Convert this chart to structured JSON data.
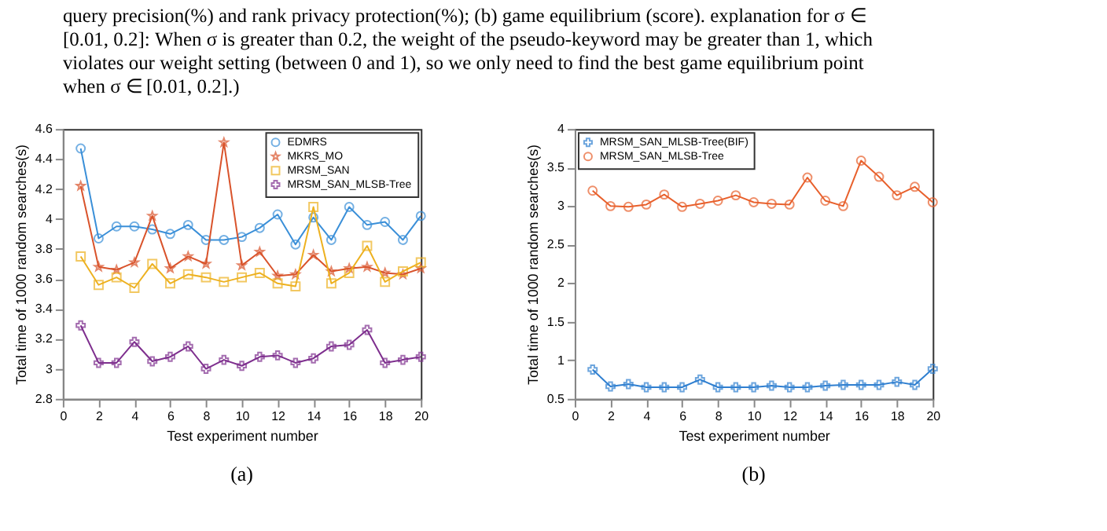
{
  "chart_data": [
    {
      "type": "line",
      "xlabel": "Test experiment number",
      "ylabel": "Total time of 1000 random searches(s)",
      "x": [
        1,
        2,
        3,
        4,
        5,
        6,
        7,
        8,
        9,
        10,
        11,
        12,
        13,
        14,
        15,
        16,
        17,
        18,
        19,
        20
      ],
      "series": [
        {
          "name": "EDMRS",
          "color": "#3a8fd8",
          "marker": "circle",
          "values": [
            4.47,
            3.87,
            3.95,
            3.95,
            3.93,
            3.9,
            3.96,
            3.86,
            3.86,
            3.88,
            3.94,
            4.03,
            3.83,
            4.01,
            3.86,
            4.08,
            3.96,
            3.98,
            3.86,
            4.02
          ]
        },
        {
          "name": "MKRS_MO",
          "color": "#d9532b",
          "marker": "star",
          "values": [
            4.22,
            3.68,
            3.66,
            3.71,
            4.02,
            3.67,
            3.75,
            3.7,
            4.51,
            3.69,
            3.78,
            3.62,
            3.63,
            3.76,
            3.65,
            3.67,
            3.68,
            3.64,
            3.63,
            3.67
          ]
        },
        {
          "name": "MRSM_SAN",
          "color": "#edb120",
          "marker": "square",
          "values": [
            3.75,
            3.56,
            3.61,
            3.54,
            3.7,
            3.57,
            3.63,
            3.61,
            3.58,
            3.61,
            3.64,
            3.57,
            3.55,
            4.08,
            3.57,
            3.64,
            3.82,
            3.58,
            3.65,
            3.71
          ]
        },
        {
          "name": "MRSM_SAN_MLSB-Tree",
          "color": "#7e2f8e",
          "marker": "cross",
          "values": [
            3.29,
            3.04,
            3.04,
            3.18,
            3.05,
            3.08,
            3.15,
            3.0,
            3.06,
            3.02,
            3.08,
            3.09,
            3.04,
            3.07,
            3.15,
            3.16,
            3.26,
            3.04,
            3.06,
            3.08
          ]
        }
      ],
      "xlim": [
        0,
        20
      ],
      "xticks": [
        0,
        2,
        4,
        6,
        8,
        10,
        12,
        14,
        16,
        18,
        20
      ],
      "ylim": [
        2.8,
        4.6
      ],
      "yticks": [
        2.8,
        3,
        3.2,
        3.4,
        3.6,
        3.8,
        4,
        4.2,
        4.4,
        4.6
      ],
      "grid": false,
      "legend": "top right",
      "annotations": [
        "query precision(%) and rank privacy protection(%); (b) game equilibrium (score). explanation for σ ∈ [0.01, 0.2]: When σ is greater than 0.2, the weight of the pseudo-keyword may be greater than 1, which violates our weight setting (between 0 and 1), so we only need to find the best game equilibrium point when σ ∈ [0.01, 0.2].)",
        "(a)"
      ]
    },
    {
      "type": "line",
      "xlabel": "Test experiment number",
      "ylabel": "Total time of 1000 random searches(s)",
      "x": [
        1,
        2,
        3,
        4,
        5,
        6,
        7,
        8,
        9,
        10,
        11,
        12,
        13,
        14,
        15,
        16,
        17,
        18,
        19,
        20
      ],
      "series": [
        {
          "name": "MRSM_SAN_MLSB-Tree(BIF)",
          "color": "#2f7fd0",
          "marker": "cross",
          "values": [
            0.88,
            0.66,
            0.69,
            0.65,
            0.65,
            0.65,
            0.75,
            0.65,
            0.65,
            0.65,
            0.67,
            0.65,
            0.65,
            0.67,
            0.68,
            0.68,
            0.68,
            0.72,
            0.68,
            0.89
          ]
        },
        {
          "name": "MRSM_SAN_MLSB-Tree",
          "color": "#e8602c",
          "marker": "circle",
          "values": [
            3.2,
            3.0,
            2.99,
            3.02,
            3.15,
            2.99,
            3.03,
            3.07,
            3.14,
            3.05,
            3.03,
            3.02,
            3.37,
            3.07,
            3.0,
            3.59,
            3.38,
            3.14,
            3.25,
            3.05
          ]
        }
      ],
      "xlim": [
        0,
        20
      ],
      "xticks": [
        0,
        2,
        4,
        6,
        8,
        10,
        12,
        14,
        16,
        18,
        20
      ],
      "ylim": [
        0.5,
        4
      ],
      "yticks": [
        0.5,
        1,
        1.5,
        2,
        2.5,
        3,
        3.5,
        4
      ],
      "grid": false,
      "legend": "top left",
      "annotations": [
        "(b)"
      ]
    }
  ]
}
